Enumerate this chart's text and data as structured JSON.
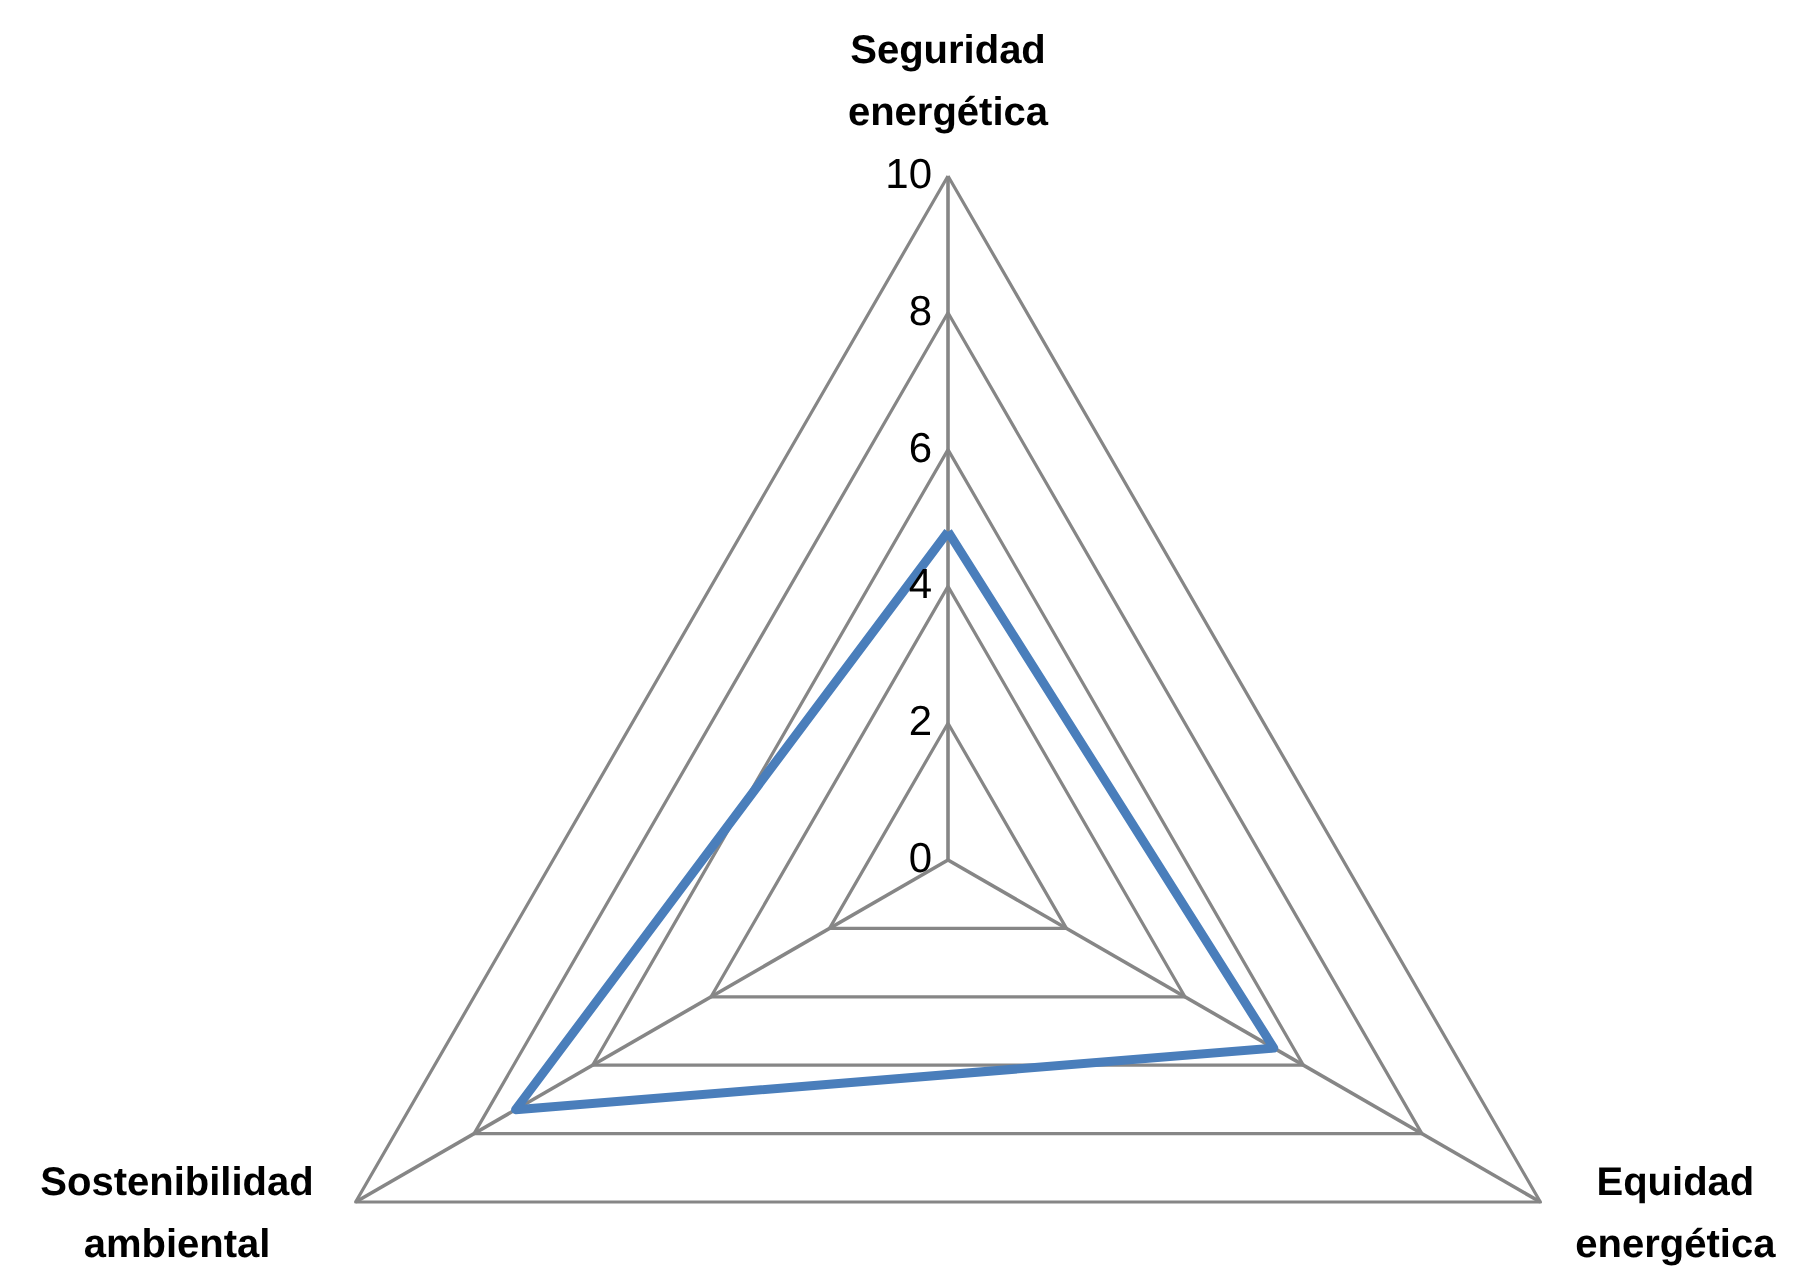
{
  "chart_data": {
    "type": "radar",
    "categories": [
      "Seguridad energética",
      "Equidad energética",
      "Sostenibilidad ambiental"
    ],
    "series": [
      {
        "color": "#4a7ebb",
        "values": [
          4.8,
          5.5,
          7.3
        ]
      }
    ],
    "ylim": [
      0,
      10
    ],
    "yticks": [
      0,
      2,
      4,
      6,
      8,
      10
    ],
    "grid": true
  }
}
